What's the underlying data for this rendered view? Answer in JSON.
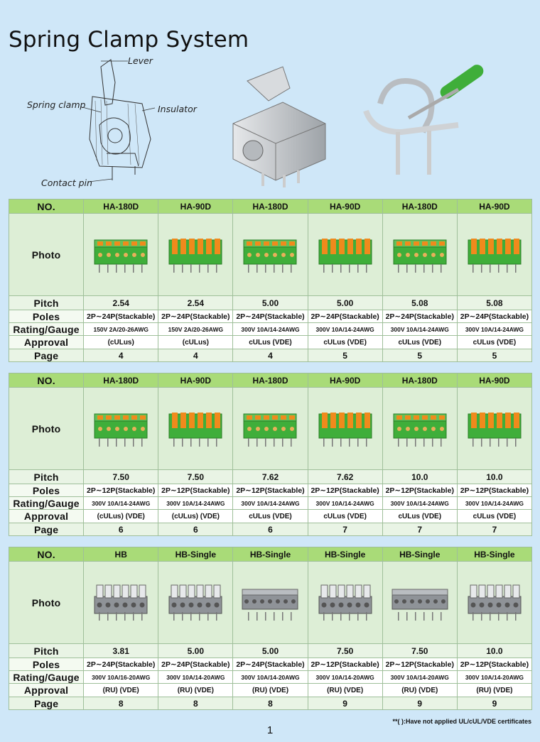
{
  "title": "Spring Clamp System",
  "diagram_labels": {
    "lever": "Lever",
    "spring_clamp": "Spring clamp",
    "insulator": "Insulator",
    "contact_pin": "Contact pin"
  },
  "row_labels": {
    "no": "NO.",
    "photo": "Photo",
    "pitch": "Pitch",
    "poles": "Poles",
    "rating": "Rating/Gauge",
    "approval": "Approval",
    "page": "Page"
  },
  "tables": [
    {
      "products": [
        {
          "model": "HA-180D",
          "pitch": "2.54",
          "poles": "2P∼24P(Stackable)",
          "rating": "150V 2A/20-26AWG",
          "approval": "(cULus)",
          "page": "4",
          "color": "green-top"
        },
        {
          "model": "HA-90D",
          "pitch": "2.54",
          "poles": "2P∼24P(Stackable)",
          "rating": "150V 2A/20-26AWG",
          "approval": "(cULus)",
          "page": "4",
          "color": "green-side"
        },
        {
          "model": "HA-180D",
          "pitch": "5.00",
          "poles": "2P∼24P(Stackable)",
          "rating": "300V 10A/14-24AWG",
          "approval": "cULus (VDE)",
          "page": "4",
          "color": "green-top"
        },
        {
          "model": "HA-90D",
          "pitch": "5.00",
          "poles": "2P∼24P(Stackable)",
          "rating": "300V 10A/14-24AWG",
          "approval": "cULus (VDE)",
          "page": "5",
          "color": "green-side"
        },
        {
          "model": "HA-180D",
          "pitch": "5.08",
          "poles": "2P∼24P(Stackable)",
          "rating": "300V 10A/14-24AWG",
          "approval": "cULus (VDE)",
          "page": "5",
          "color": "green-top"
        },
        {
          "model": "HA-90D",
          "pitch": "5.08",
          "poles": "2P∼24P(Stackable)",
          "rating": "300V 10A/14-24AWG",
          "approval": "cULus (VDE)",
          "page": "5",
          "color": "green-side"
        }
      ]
    },
    {
      "products": [
        {
          "model": "HA-180D",
          "pitch": "7.50",
          "poles": "2P∼12P(Stackable)",
          "rating": "300V 10A/14-24AWG",
          "approval": "(cULus) (VDE)",
          "page": "6",
          "color": "green-top"
        },
        {
          "model": "HA-90D",
          "pitch": "7.50",
          "poles": "2P∼12P(Stackable)",
          "rating": "300V 10A/14-24AWG",
          "approval": "(cULus) (VDE)",
          "page": "6",
          "color": "green-side"
        },
        {
          "model": "HA-180D",
          "pitch": "7.62",
          "poles": "2P∼12P(Stackable)",
          "rating": "300V 10A/14-24AWG",
          "approval": "cULus (VDE)",
          "page": "6",
          "color": "green-top"
        },
        {
          "model": "HA-90D",
          "pitch": "7.62",
          "poles": "2P∼12P(Stackable)",
          "rating": "300V 10A/14-24AWG",
          "approval": "cULus (VDE)",
          "page": "7",
          "color": "green-side"
        },
        {
          "model": "HA-180D",
          "pitch": "10.0",
          "poles": "2P∼12P(Stackable)",
          "rating": "300V 10A/14-24AWG",
          "approval": "cULus (VDE)",
          "page": "7",
          "color": "green-top"
        },
        {
          "model": "HA-90D",
          "pitch": "10.0",
          "poles": "2P∼12P(Stackable)",
          "rating": "300V 10A/14-24AWG",
          "approval": "cULus (VDE)",
          "page": "7",
          "color": "green-side"
        }
      ]
    },
    {
      "products": [
        {
          "model": "HB",
          "pitch": "3.81",
          "poles": "2P∼24P(Stackable)",
          "rating": "300V 10A/16-20AWG",
          "approval": "(RU) (VDE)",
          "page": "8",
          "color": "grey-tall"
        },
        {
          "model": "HB-Single",
          "pitch": "5.00",
          "poles": "2P∼24P(Stackable)",
          "rating": "300V 10A/14-20AWG",
          "approval": "(RU) (VDE)",
          "page": "8",
          "color": "grey-tall"
        },
        {
          "model": "HB-Single",
          "pitch": "5.00",
          "poles": "2P∼24P(Stackable)",
          "rating": "300V 10A/14-20AWG",
          "approval": "(RU) (VDE)",
          "page": "8",
          "color": "grey-flat"
        },
        {
          "model": "HB-Single",
          "pitch": "7.50",
          "poles": "2P∼12P(Stackable)",
          "rating": "300V 10A/14-20AWG",
          "approval": "(RU) (VDE)",
          "page": "9",
          "color": "grey-tall"
        },
        {
          "model": "HB-Single",
          "pitch": "7.50",
          "poles": "2P∼12P(Stackable)",
          "rating": "300V 10A/14-20AWG",
          "approval": "(RU) (VDE)",
          "page": "9",
          "color": "grey-flat"
        },
        {
          "model": "HB-Single",
          "pitch": "10.0",
          "poles": "2P∼12P(Stackable)",
          "rating": "300V 10A/14-20AWG",
          "approval": "(RU) (VDE)",
          "page": "9",
          "color": "grey-tall"
        }
      ]
    }
  ],
  "footnote": "**(     ):Have not applied UL/cUL/VDE certificates",
  "page_number": "1",
  "colors": {
    "background": "#cfe7f8",
    "header_row": "#a9db78",
    "terminal_green": "#3fae3a",
    "lever_orange": "#f08a1c",
    "terminal_grey": "#8f9398"
  }
}
